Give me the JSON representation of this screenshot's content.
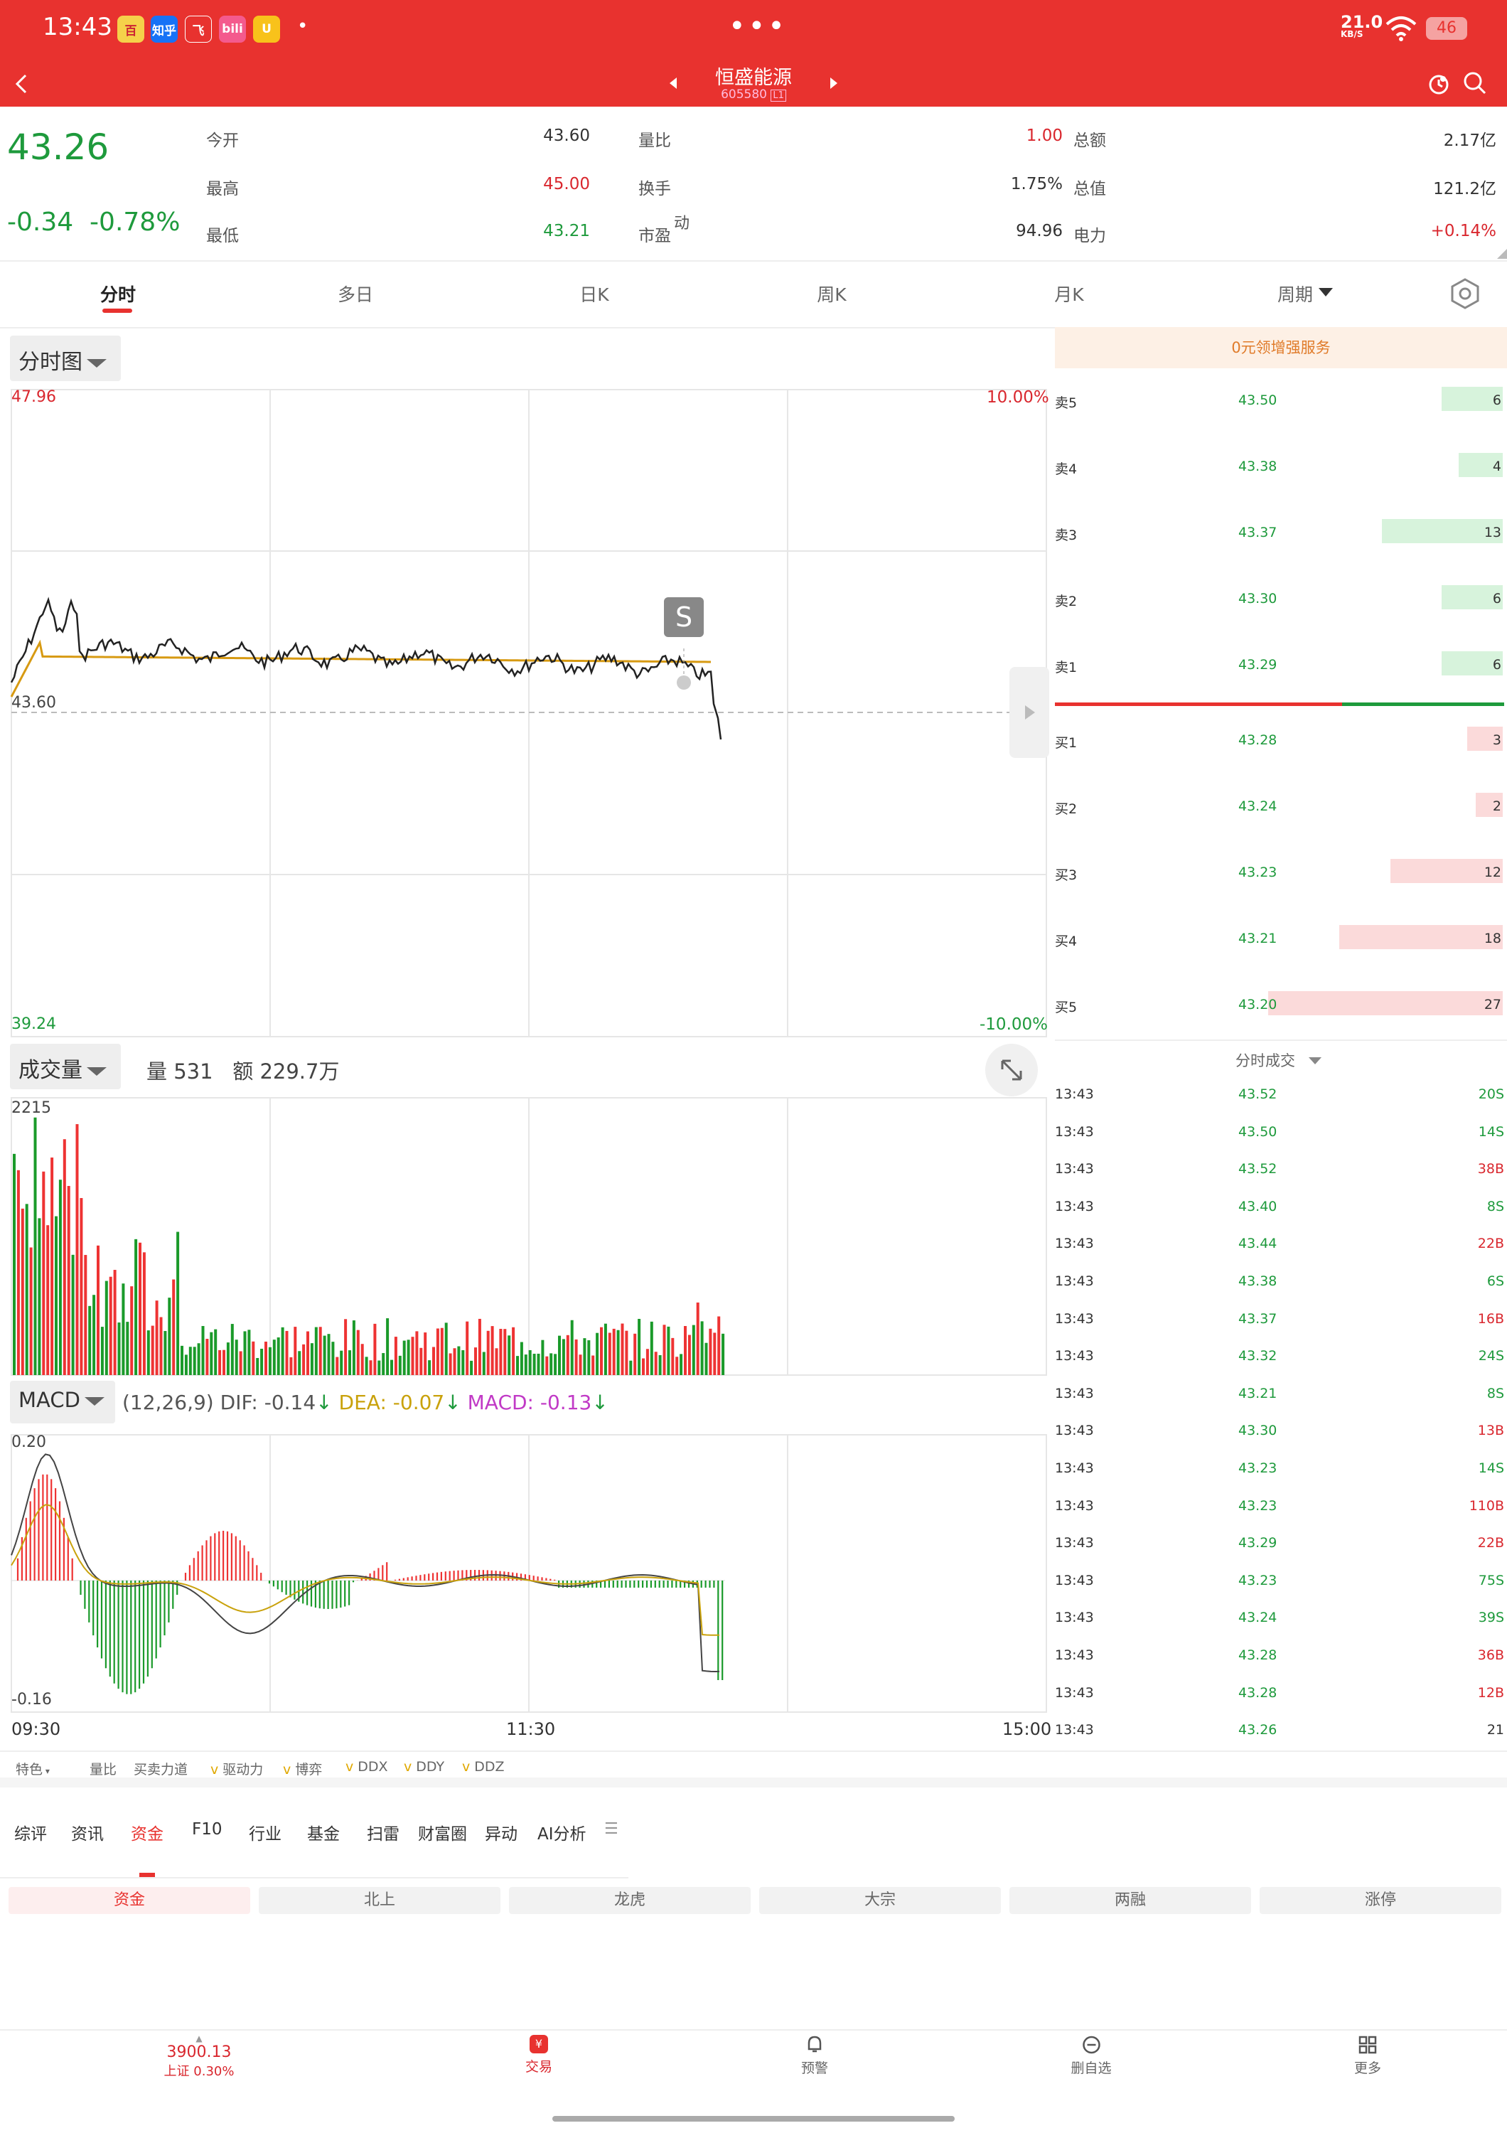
{
  "status": {
    "time": "13:43",
    "apps": [
      "百",
      "知乎",
      "飞",
      "bili",
      "U"
    ],
    "dot": "•",
    "speed": "21.0",
    "speed_unit": "KB/S",
    "battery": "46"
  },
  "nav": {
    "title": "恒盛能源",
    "code": "605580",
    "code_badge": "L1"
  },
  "quote": {
    "price": "43.26",
    "change": "-0.34",
    "change_pct": "-0.78%",
    "c1": [
      {
        "label": "今开",
        "value": "43.60",
        "color": "#333"
      },
      {
        "label": "最高",
        "value": "45.00",
        "color": "#d9272e"
      },
      {
        "label": "最低",
        "value": "43.21",
        "color": "#1e9a3c"
      }
    ],
    "c2": [
      {
        "label": "量比",
        "value": "1.00",
        "color": "#d9272e"
      },
      {
        "label": "换手",
        "value": "1.75%",
        "color": "#333"
      },
      {
        "label": "市盈",
        "sup": "动",
        "value": "94.96",
        "color": "#333"
      }
    ],
    "c3": [
      {
        "label": "总额",
        "value": "2.17亿",
        "color": "#333"
      },
      {
        "label": "总值",
        "value": "121.2亿",
        "color": "#333"
      },
      {
        "label": "电力",
        "value": "+0.14%",
        "color": "#d9272e"
      }
    ]
  },
  "tabs": [
    "分时",
    "多日",
    "日K",
    "周K",
    "月K",
    "周期"
  ],
  "intraday": {
    "selector": "分时图",
    "ymax": "47.96",
    "ymin": "39.24",
    "pmax": "10.00%",
    "pmin": "-10.00%",
    "ref": "43.60",
    "marker": "S",
    "time_labels": [
      "09:30",
      "11:30",
      "15:00"
    ]
  },
  "volume": {
    "selector": "成交量",
    "vol_label": "量 531",
    "amt_label": "额 229.7万",
    "max": "2215"
  },
  "macd": {
    "selector": "MACD",
    "params": "(12,26,9)",
    "dif": "DIF: -0.14",
    "dea": "DEA: -0.07",
    "macd": "MACD: -0.13",
    "max": "0.20",
    "min": "-0.16"
  },
  "service_banner": "0元领增强服务",
  "orderbook": {
    "asks": [
      {
        "name": "卖5",
        "price": "43.50",
        "qty": "6"
      },
      {
        "name": "卖4",
        "price": "43.38",
        "qty": "4"
      },
      {
        "name": "卖3",
        "price": "43.37",
        "qty": "13"
      },
      {
        "name": "卖2",
        "price": "43.30",
        "qty": "6"
      },
      {
        "name": "卖1",
        "price": "43.29",
        "qty": "6"
      }
    ],
    "bids": [
      {
        "name": "买1",
        "price": "43.28",
        "qty": "3"
      },
      {
        "name": "买2",
        "price": "43.24",
        "qty": "2"
      },
      {
        "name": "买3",
        "price": "43.23",
        "qty": "12"
      },
      {
        "name": "买4",
        "price": "43.21",
        "qty": "18"
      },
      {
        "name": "买5",
        "price": "43.20",
        "qty": "27"
      }
    ]
  },
  "trades": {
    "title": "分时成交",
    "rows": [
      [
        "13:43",
        "43.52",
        "20",
        "S"
      ],
      [
        "13:43",
        "43.50",
        "14",
        "S"
      ],
      [
        "13:43",
        "43.52",
        "38",
        "B"
      ],
      [
        "13:43",
        "43.40",
        "8",
        "S"
      ],
      [
        "13:43",
        "43.44",
        "22",
        "B"
      ],
      [
        "13:43",
        "43.38",
        "6",
        "S"
      ],
      [
        "13:43",
        "43.37",
        "16",
        "B"
      ],
      [
        "13:43",
        "43.32",
        "24",
        "S"
      ],
      [
        "13:43",
        "43.21",
        "8",
        "S"
      ],
      [
        "13:43",
        "43.30",
        "13",
        "B"
      ],
      [
        "13:43",
        "43.23",
        "14",
        "S"
      ],
      [
        "13:43",
        "43.23",
        "110",
        "B"
      ],
      [
        "13:43",
        "43.29",
        "22",
        "B"
      ],
      [
        "13:43",
        "43.23",
        "75",
        "S"
      ],
      [
        "13:43",
        "43.24",
        "39",
        "S"
      ],
      [
        "13:43",
        "43.28",
        "36",
        "B"
      ],
      [
        "13:43",
        "43.28",
        "12",
        "B"
      ],
      [
        "13:43",
        "43.26",
        "21",
        ""
      ]
    ]
  },
  "indicators": [
    "特色",
    "量比",
    "买卖力道",
    "驱动力",
    "博弈",
    "DDX",
    "DDY",
    "DDZ"
  ],
  "bottom_tabs": [
    "综评",
    "资讯",
    "资金",
    "F10",
    "行业",
    "基金",
    "扫雷",
    "财富圈",
    "异动",
    "AI分析"
  ],
  "chips": [
    "资金",
    "北上",
    "龙虎",
    "大宗",
    "两融",
    "涨停"
  ],
  "bottom_nav": {
    "index_value": "3900.13",
    "index_label": "上证 0.30%",
    "items": [
      "交易",
      "预警",
      "删自选",
      "更多"
    ]
  }
}
